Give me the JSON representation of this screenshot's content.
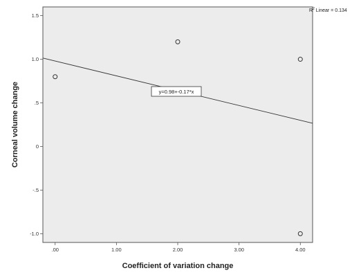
{
  "chart_data": {
    "type": "scatter",
    "xlabel": "Coefficient of variation change",
    "ylabel": "Corneal volume change",
    "xlim": [
      -0.2,
      4.2
    ],
    "ylim": [
      -1.1,
      1.6
    ],
    "x_ticks": [
      0,
      1,
      2,
      3,
      4
    ],
    "x_tick_labels": [
      ".00",
      "1.00",
      "2.00",
      "3.00",
      "4.00"
    ],
    "y_ticks": [
      -1.0,
      -0.5,
      0,
      0.5,
      1.0,
      1.5
    ],
    "y_tick_labels": [
      "-1.0",
      "-.5",
      "0",
      ".5",
      "1.0",
      "1.5"
    ],
    "points": [
      {
        "x": 0.0,
        "y": 0.8
      },
      {
        "x": 2.0,
        "y": 1.2
      },
      {
        "x": 4.0,
        "y": 1.0
      },
      {
        "x": 4.0,
        "y": -1.0
      }
    ],
    "fit_line": {
      "intercept": 0.98,
      "slope": -0.17
    },
    "equation_label": "y=0.98+-0.17*x",
    "r2_label": "R",
    "r2_superscript": "2",
    "r2_value_label": " Linear = 0.134",
    "plot_background": "#ececec",
    "grid": false
  }
}
